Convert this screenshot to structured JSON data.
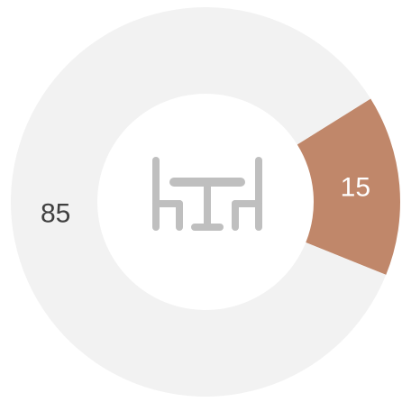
{
  "chart_data": {
    "type": "donut",
    "categories": [
      null,
      null
    ],
    "values": [
      15,
      85
    ],
    "colors": [
      "#c0876a",
      "#f2f2f2"
    ],
    "start_angle": 58
  }
}
